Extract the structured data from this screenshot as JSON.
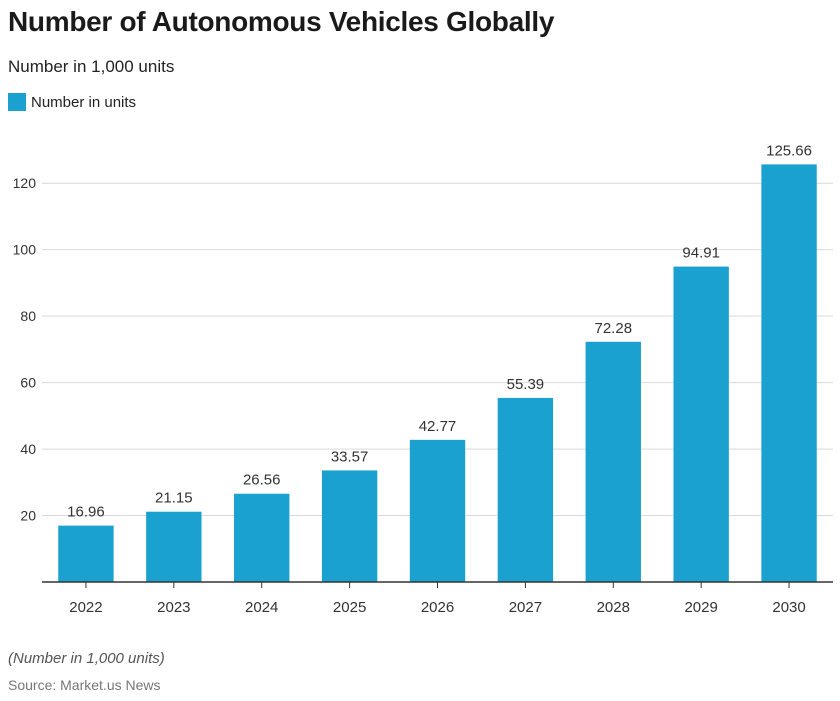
{
  "title": "Number of Autonomous Vehicles Globally",
  "subtitle": "Number in 1,000 units",
  "footnote": "(Number in 1,000 units)",
  "source": "Source: Market.us News",
  "colors": {
    "bar": "#1aa1cf",
    "grid": "#d9d9d9",
    "axis": "#333333"
  },
  "chart_data": {
    "type": "bar",
    "title": "Number of Autonomous Vehicles Globally",
    "subtitle": "Number in 1,000 units",
    "categories": [
      "2022",
      "2023",
      "2024",
      "2025",
      "2026",
      "2027",
      "2028",
      "2029",
      "2030"
    ],
    "series": [
      {
        "name": "Number in units",
        "values": [
          16.96,
          21.15,
          26.56,
          33.57,
          42.77,
          55.39,
          72.28,
          94.91,
          125.66
        ]
      }
    ],
    "data_labels": [
      "16.96",
      "21.15",
      "26.56",
      "33.57",
      "42.77",
      "55.39",
      "72.28",
      "94.91",
      "125.66"
    ],
    "yticks": [
      20,
      40,
      60,
      80,
      100,
      120
    ],
    "ylim": [
      0,
      133
    ],
    "grid": true,
    "legend": "top-left"
  }
}
